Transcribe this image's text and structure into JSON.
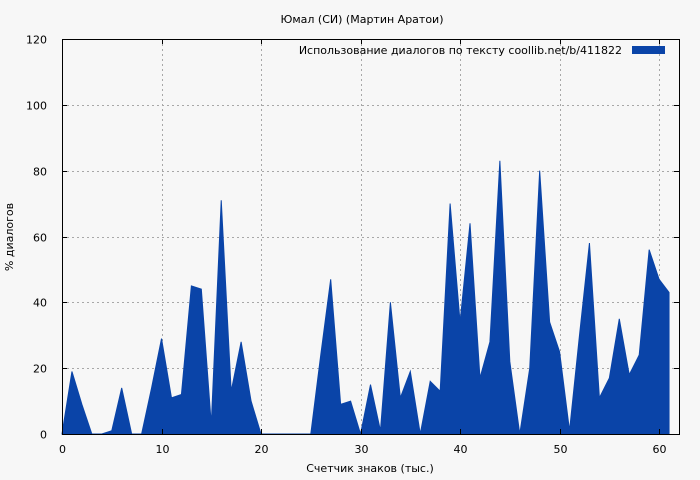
{
  "chart_data": {
    "type": "area",
    "title": "Юмал (СИ) (Мартин Аратои)",
    "xlabel": "Счетчик знаков (тыс.)",
    "ylabel": "% диалогов",
    "xlim": [
      0,
      62
    ],
    "ylim": [
      0,
      120
    ],
    "x_ticks": [
      0,
      10,
      20,
      30,
      40,
      50,
      60
    ],
    "y_ticks": [
      0,
      20,
      40,
      60,
      80,
      100,
      120
    ],
    "grid": true,
    "legend_position": "top-right",
    "color": "#0a44a8",
    "series": [
      {
        "name": "Использование диалогов по тексту  coollib.net/b/411822",
        "x": [
          0,
          1,
          2,
          3,
          4,
          5,
          6,
          7,
          8,
          9,
          10,
          11,
          12,
          13,
          14,
          15,
          16,
          17,
          18,
          19,
          20,
          21,
          22,
          23,
          24,
          25,
          26,
          27,
          28,
          29,
          30,
          31,
          32,
          33,
          34,
          35,
          36,
          37,
          38,
          39,
          40,
          41,
          42,
          43,
          44,
          45,
          46,
          47,
          48,
          49,
          50,
          51,
          52,
          53,
          54,
          55,
          56,
          57,
          58,
          59,
          60,
          61
        ],
        "values": [
          0,
          19,
          9,
          0,
          0,
          1,
          14,
          0,
          0,
          14,
          29,
          11,
          12,
          45,
          44,
          3,
          71,
          13,
          28,
          10,
          0,
          0,
          0,
          0,
          0,
          0,
          24,
          47,
          9,
          10,
          0,
          15,
          1,
          40,
          11,
          19,
          0,
          16,
          13,
          70,
          34,
          64,
          17,
          28,
          83,
          22,
          0,
          20,
          80,
          34,
          25,
          1,
          30,
          58,
          11,
          17,
          35,
          18,
          24,
          56,
          47,
          43
        ]
      }
    ]
  }
}
